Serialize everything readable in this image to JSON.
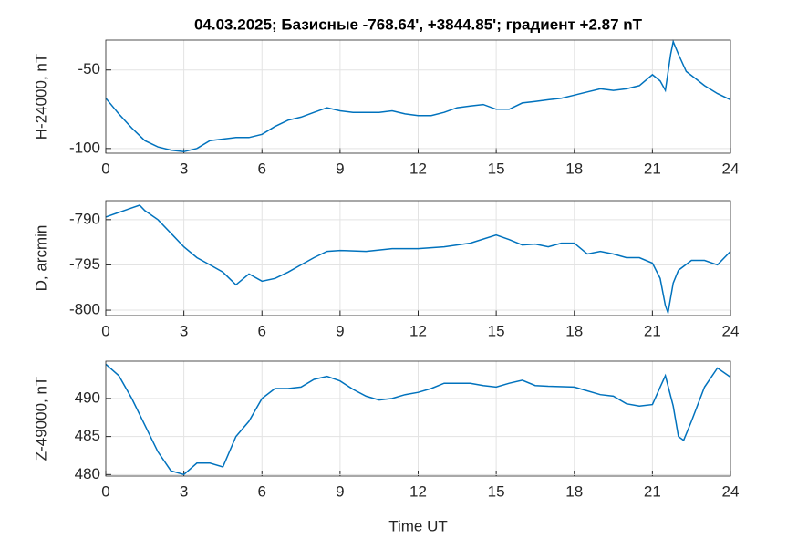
{
  "chart_data": [
    {
      "type": "line",
      "title": "04.03.2025;  Базисные  -768.64', +3844.85'; градиент +2.87 nT",
      "y_label": "H-24000, nT",
      "x": [
        0,
        0.5,
        1,
        1.5,
        2,
        2.5,
        3,
        3.5,
        4,
        4.5,
        5,
        5.5,
        6,
        6.5,
        7,
        7.5,
        8,
        8.5,
        9,
        9.5,
        10,
        10.5,
        11,
        11.5,
        12,
        12.5,
        13,
        13.5,
        14,
        14.5,
        15,
        15.5,
        16,
        16.5,
        17,
        17.5,
        18,
        18.5,
        19,
        19.5,
        20,
        20.5,
        21,
        21.3,
        21.5,
        21.7,
        21.8,
        22,
        22.3,
        22.7,
        23,
        23.5,
        24
      ],
      "series": [
        {
          "color": "#0072bd",
          "values": [
            -68,
            -78,
            -87,
            -95,
            -99,
            -101,
            -102,
            -100,
            -95,
            -94,
            -93,
            -93,
            -91,
            -86,
            -82,
            -80,
            -77,
            -74,
            -76,
            -77,
            -77,
            -77,
            -76,
            -78,
            -79,
            -79,
            -77,
            -74,
            -73,
            -72,
            -75,
            -75,
            -71,
            -70,
            -69,
            -68,
            -66,
            -64,
            -62,
            -63,
            -62,
            -60,
            -53,
            -57,
            -63,
            -40,
            -32,
            -40,
            -51,
            -56,
            -60,
            -65,
            -69
          ]
        }
      ],
      "xlim": [
        0,
        24
      ],
      "xticks": [
        0,
        3,
        6,
        9,
        12,
        15,
        18,
        21,
        24
      ],
      "ylim": [
        -103,
        -31
      ],
      "yticks": [
        -100,
        -50
      ],
      "grid": true
    },
    {
      "type": "line",
      "y_label": "D, arcmin",
      "x": [
        0,
        0.5,
        1,
        1.3,
        1.5,
        2,
        2.5,
        3,
        3.5,
        4,
        4.5,
        5,
        5.5,
        6,
        6.5,
        7,
        7.5,
        8,
        8.5,
        9,
        10,
        11,
        12,
        13,
        14,
        15,
        15.5,
        16,
        16.5,
        17,
        17.5,
        18,
        18.5,
        19,
        19.5,
        20,
        20.5,
        21,
        21.3,
        21.5,
        21.6,
        21.8,
        22,
        22.5,
        23,
        23.5,
        24
      ],
      "series": [
        {
          "color": "#0072bd",
          "values": [
            -789.7,
            -789.2,
            -788.7,
            -788.4,
            -789,
            -790,
            -791.5,
            -793,
            -794.2,
            -795,
            -795.8,
            -797.2,
            -796,
            -796.8,
            -796.5,
            -795.8,
            -795,
            -794.2,
            -793.5,
            -793.4,
            -793.5,
            -793.2,
            -793.2,
            -793,
            -792.6,
            -791.7,
            -792.2,
            -792.8,
            -792.7,
            -793,
            -792.6,
            -792.6,
            -793.8,
            -793.5,
            -793.8,
            -794.2,
            -794.2,
            -794.8,
            -796.5,
            -799.5,
            -800.3,
            -797,
            -795.6,
            -794.5,
            -794.5,
            -795,
            -793.5
          ]
        }
      ],
      "xlim": [
        0,
        24
      ],
      "xticks": [
        0,
        3,
        6,
        9,
        12,
        15,
        18,
        21,
        24
      ],
      "ylim": [
        -800.6,
        -787.9
      ],
      "yticks": [
        -800,
        -795,
        -790
      ],
      "grid": true
    },
    {
      "type": "line",
      "y_label": "Z-49000, nT",
      "x_label": "Time UT",
      "x": [
        0,
        0.5,
        1,
        1.5,
        2,
        2.5,
        3,
        3.5,
        4,
        4.5,
        5,
        5.5,
        6,
        6.5,
        7,
        7.5,
        8,
        8.5,
        9,
        9.5,
        10,
        10.5,
        11,
        11.5,
        12,
        12.5,
        13,
        14,
        14.5,
        15,
        15.5,
        16,
        16.5,
        17,
        18,
        19,
        19.5,
        20,
        20.5,
        21,
        21.3,
        21.5,
        21.8,
        22,
        22.2,
        22.5,
        23,
        23.5,
        24
      ],
      "series": [
        {
          "color": "#0072bd",
          "values": [
            494.5,
            493,
            490,
            486.5,
            483,
            480.5,
            480,
            481.5,
            481.5,
            481,
            485,
            487,
            490,
            491.3,
            491.3,
            491.5,
            492.5,
            492.9,
            492.3,
            491.2,
            490.3,
            489.8,
            490,
            490.5,
            490.8,
            491.3,
            492,
            492,
            491.7,
            491.5,
            492,
            492.4,
            491.7,
            491.6,
            491.5,
            490.5,
            490.3,
            489.3,
            489,
            489.2,
            491.5,
            493,
            489,
            485,
            484.5,
            487,
            491.5,
            494,
            492.8
          ]
        }
      ],
      "xlim": [
        0,
        24
      ],
      "xticks": [
        0,
        3,
        6,
        9,
        12,
        15,
        18,
        21,
        24
      ],
      "ylim": [
        479.8,
        494.9
      ],
      "yticks": [
        480,
        485,
        490
      ],
      "grid": true
    }
  ]
}
